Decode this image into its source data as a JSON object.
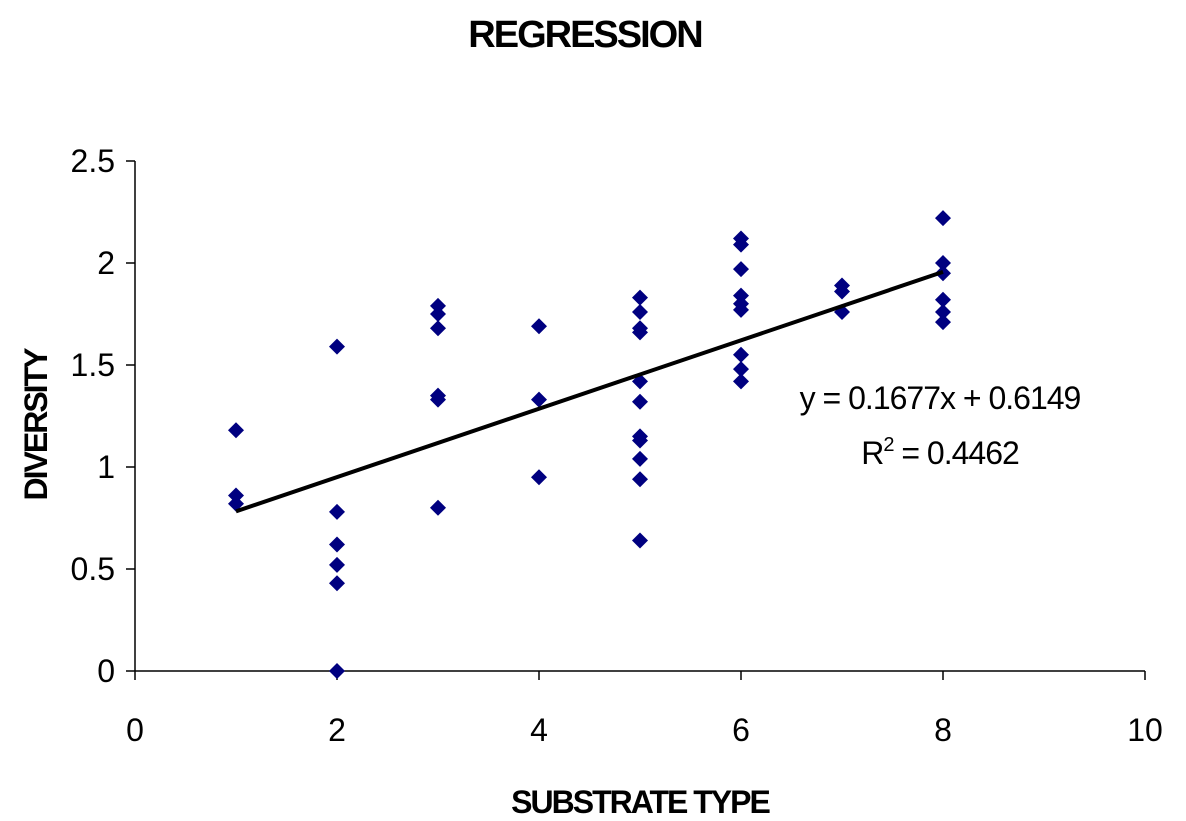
{
  "chart_data": {
    "type": "scatter",
    "title": "REGRESSION",
    "xlabel": "SUBSTRATE TYPE",
    "ylabel": "DIVERSITY",
    "xlim": [
      0,
      10
    ],
    "ylim": [
      0,
      2.5
    ],
    "x_ticks": [
      "0",
      "2",
      "4",
      "6",
      "8",
      "10"
    ],
    "y_ticks": [
      "0",
      "0.5",
      "1",
      "1.5",
      "2",
      "2.5"
    ],
    "grid": false,
    "legend": "none",
    "marker": "diamond",
    "marker_color": "#000080",
    "line_color": "#000000",
    "points": [
      {
        "x": 1,
        "y": 1.18
      },
      {
        "x": 1,
        "y": 0.86
      },
      {
        "x": 1,
        "y": 0.82
      },
      {
        "x": 2,
        "y": 1.59
      },
      {
        "x": 2,
        "y": 0.78
      },
      {
        "x": 2,
        "y": 0.62
      },
      {
        "x": 2,
        "y": 0.52
      },
      {
        "x": 2,
        "y": 0.43
      },
      {
        "x": 2,
        "y": 0.0
      },
      {
        "x": 3,
        "y": 1.79
      },
      {
        "x": 3,
        "y": 1.75
      },
      {
        "x": 3,
        "y": 1.68
      },
      {
        "x": 3,
        "y": 1.35
      },
      {
        "x": 3,
        "y": 1.33
      },
      {
        "x": 3,
        "y": 0.8
      },
      {
        "x": 4,
        "y": 1.69
      },
      {
        "x": 4,
        "y": 1.33
      },
      {
        "x": 4,
        "y": 0.95
      },
      {
        "x": 5,
        "y": 1.83
      },
      {
        "x": 5,
        "y": 1.76
      },
      {
        "x": 5,
        "y": 1.68
      },
      {
        "x": 5,
        "y": 1.66
      },
      {
        "x": 5,
        "y": 1.42
      },
      {
        "x": 5,
        "y": 1.32
      },
      {
        "x": 5,
        "y": 1.15
      },
      {
        "x": 5,
        "y": 1.13
      },
      {
        "x": 5,
        "y": 1.04
      },
      {
        "x": 5,
        "y": 0.94
      },
      {
        "x": 5,
        "y": 0.64
      },
      {
        "x": 6,
        "y": 2.12
      },
      {
        "x": 6,
        "y": 2.09
      },
      {
        "x": 6,
        "y": 1.97
      },
      {
        "x": 6,
        "y": 1.84
      },
      {
        "x": 6,
        "y": 1.8
      },
      {
        "x": 6,
        "y": 1.77
      },
      {
        "x": 6,
        "y": 1.55
      },
      {
        "x": 6,
        "y": 1.48
      },
      {
        "x": 6,
        "y": 1.42
      },
      {
        "x": 7,
        "y": 1.89
      },
      {
        "x": 7,
        "y": 1.86
      },
      {
        "x": 7,
        "y": 1.76
      },
      {
        "x": 8,
        "y": 2.22
      },
      {
        "x": 8,
        "y": 2.0
      },
      {
        "x": 8,
        "y": 1.95
      },
      {
        "x": 8,
        "y": 1.82
      },
      {
        "x": 8,
        "y": 1.76
      },
      {
        "x": 8,
        "y": 1.71
      }
    ],
    "trendline": {
      "type": "linear",
      "slope": 0.1677,
      "intercept": 0.6149,
      "x_range": [
        1,
        8
      ],
      "equation_label": "y = 0.1677x + 0.6149",
      "r2_prefix": "R",
      "r2_exponent": "2",
      "r2_value": " = 0.4462"
    }
  }
}
